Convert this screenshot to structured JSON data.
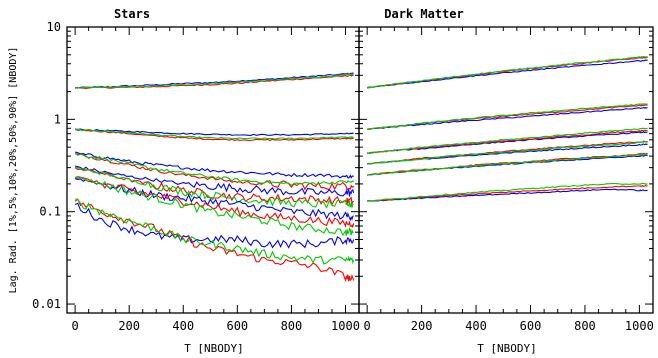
{
  "figure": {
    "y_axis_label": "Lag. Rad. [1%,5%,10%,20%,50%,90%] [NBODY]"
  },
  "series_colors": {
    "blue": "#0000ff",
    "red": "#ff0000",
    "green": "#00cc00"
  },
  "chart_data": [
    {
      "type": "line",
      "title": "Stars",
      "xlabel": "T [NBODY]",
      "ylabel": "Lag. Rad. [1%,5%,10%,20%,50%,90%] [NBODY]",
      "xlim": [
        -30,
        1050
      ],
      "ylim": [
        0.008,
        10
      ],
      "yscale": "log",
      "xticks": [
        0,
        200,
        400,
        600,
        800,
        1000
      ],
      "yticks": [
        0.01,
        0.1,
        1,
        10
      ],
      "ytick_labels": [
        "0.01",
        "0.1",
        "1",
        "10"
      ],
      "grid": false,
      "x": [
        0,
        100,
        200,
        300,
        400,
        500,
        600,
        700,
        800,
        900,
        1000,
        1030
      ],
      "series": [
        {
          "color": "blue",
          "values": [
            2.2,
            2.24,
            2.3,
            2.36,
            2.44,
            2.5,
            2.6,
            2.7,
            2.82,
            2.95,
            3.1,
            3.15
          ]
        },
        {
          "color": "red",
          "values": [
            2.18,
            2.2,
            2.22,
            2.26,
            2.32,
            2.38,
            2.46,
            2.58,
            2.7,
            2.82,
            2.95,
            3.0
          ]
        },
        {
          "color": "green",
          "values": [
            2.19,
            2.22,
            2.25,
            2.3,
            2.37,
            2.44,
            2.53,
            2.63,
            2.75,
            2.88,
            3.02,
            3.07
          ]
        },
        {
          "color": "blue",
          "values": [
            0.78,
            0.76,
            0.74,
            0.72,
            0.7,
            0.69,
            0.68,
            0.68,
            0.68,
            0.69,
            0.7,
            0.7
          ]
        },
        {
          "color": "red",
          "values": [
            0.77,
            0.74,
            0.7,
            0.66,
            0.63,
            0.61,
            0.6,
            0.6,
            0.6,
            0.61,
            0.62,
            0.62
          ]
        },
        {
          "color": "green",
          "values": [
            0.77,
            0.75,
            0.72,
            0.68,
            0.65,
            0.63,
            0.62,
            0.62,
            0.62,
            0.63,
            0.64,
            0.64
          ]
        },
        {
          "color": "blue",
          "values": [
            0.43,
            0.39,
            0.35,
            0.32,
            0.3,
            0.28,
            0.27,
            0.26,
            0.25,
            0.25,
            0.24,
            0.24
          ]
        },
        {
          "color": "red",
          "values": [
            0.42,
            0.37,
            0.32,
            0.28,
            0.25,
            0.23,
            0.21,
            0.2,
            0.195,
            0.19,
            0.19,
            0.19
          ]
        },
        {
          "color": "green",
          "values": [
            0.42,
            0.38,
            0.33,
            0.29,
            0.26,
            0.24,
            0.22,
            0.21,
            0.2,
            0.205,
            0.21,
            0.21
          ]
        },
        {
          "color": "blue",
          "values": [
            0.31,
            0.27,
            0.24,
            0.22,
            0.2,
            0.19,
            0.18,
            0.17,
            0.165,
            0.16,
            0.16,
            0.16
          ]
        },
        {
          "color": "red",
          "values": [
            0.3,
            0.26,
            0.22,
            0.19,
            0.17,
            0.155,
            0.145,
            0.14,
            0.14,
            0.135,
            0.13,
            0.13
          ]
        },
        {
          "color": "green",
          "values": [
            0.3,
            0.26,
            0.22,
            0.19,
            0.165,
            0.15,
            0.14,
            0.13,
            0.125,
            0.12,
            0.12,
            0.12
          ]
        },
        {
          "color": "blue",
          "values": [
            0.23,
            0.2,
            0.17,
            0.15,
            0.14,
            0.13,
            0.12,
            0.11,
            0.1,
            0.095,
            0.09,
            0.09
          ]
        },
        {
          "color": "red",
          "values": [
            0.24,
            0.2,
            0.17,
            0.15,
            0.13,
            0.115,
            0.1,
            0.09,
            0.085,
            0.08,
            0.075,
            0.075
          ]
        },
        {
          "color": "green",
          "values": [
            0.24,
            0.2,
            0.165,
            0.14,
            0.12,
            0.1,
            0.09,
            0.08,
            0.07,
            0.065,
            0.06,
            0.06
          ]
        },
        {
          "color": "blue",
          "values": [
            0.12,
            0.08,
            0.065,
            0.055,
            0.05,
            0.05,
            0.05,
            0.045,
            0.045,
            0.045,
            0.05,
            0.05
          ]
        },
        {
          "color": "red",
          "values": [
            0.13,
            0.1,
            0.08,
            0.065,
            0.05,
            0.04,
            0.035,
            0.03,
            0.028,
            0.025,
            0.02,
            0.018
          ]
        },
        {
          "color": "green",
          "values": [
            0.13,
            0.1,
            0.08,
            0.065,
            0.05,
            0.045,
            0.04,
            0.035,
            0.032,
            0.03,
            0.03,
            0.03
          ]
        }
      ]
    },
    {
      "type": "line",
      "title": "Dark Matter",
      "xlabel": "T [NBODY]",
      "xlim": [
        -30,
        1050
      ],
      "ylim": [
        0.008,
        10
      ],
      "yscale": "log",
      "xticks": [
        0,
        200,
        400,
        600,
        800,
        1000
      ],
      "grid": false,
      "x": [
        0,
        100,
        200,
        300,
        400,
        500,
        600,
        700,
        800,
        900,
        1000,
        1030
      ],
      "series": [
        {
          "color": "blue",
          "values": [
            2.2,
            2.38,
            2.56,
            2.76,
            2.97,
            3.18,
            3.4,
            3.62,
            3.84,
            4.07,
            4.3,
            4.37
          ]
        },
        {
          "color": "red",
          "values": [
            2.2,
            2.4,
            2.6,
            2.82,
            3.05,
            3.3,
            3.55,
            3.8,
            4.06,
            4.33,
            4.6,
            4.68
          ]
        },
        {
          "color": "green",
          "values": [
            2.2,
            2.41,
            2.62,
            2.85,
            3.09,
            3.34,
            3.6,
            3.86,
            4.13,
            4.41,
            4.7,
            4.79
          ]
        },
        {
          "color": "blue",
          "values": [
            0.78,
            0.83,
            0.88,
            0.93,
            0.98,
            1.03,
            1.08,
            1.14,
            1.2,
            1.26,
            1.32,
            1.34
          ]
        },
        {
          "color": "red",
          "values": [
            0.78,
            0.84,
            0.9,
            0.96,
            1.02,
            1.08,
            1.14,
            1.2,
            1.27,
            1.34,
            1.41,
            1.43
          ]
        },
        {
          "color": "green",
          "values": [
            0.78,
            0.84,
            0.91,
            0.97,
            1.04,
            1.1,
            1.17,
            1.24,
            1.31,
            1.38,
            1.45,
            1.47
          ]
        },
        {
          "color": "blue",
          "values": [
            0.43,
            0.46,
            0.48,
            0.51,
            0.54,
            0.57,
            0.6,
            0.63,
            0.66,
            0.69,
            0.72,
            0.73
          ]
        },
        {
          "color": "red",
          "values": [
            0.43,
            0.46,
            0.49,
            0.52,
            0.55,
            0.58,
            0.61,
            0.65,
            0.68,
            0.72,
            0.75,
            0.76
          ]
        },
        {
          "color": "green",
          "values": [
            0.43,
            0.46,
            0.5,
            0.53,
            0.56,
            0.6,
            0.63,
            0.67,
            0.71,
            0.75,
            0.79,
            0.8
          ]
        },
        {
          "color": "blue",
          "values": [
            0.33,
            0.35,
            0.37,
            0.39,
            0.41,
            0.43,
            0.45,
            0.47,
            0.49,
            0.51,
            0.53,
            0.54
          ]
        },
        {
          "color": "red",
          "values": [
            0.33,
            0.35,
            0.38,
            0.4,
            0.42,
            0.45,
            0.47,
            0.5,
            0.52,
            0.55,
            0.57,
            0.58
          ]
        },
        {
          "color": "green",
          "values": [
            0.33,
            0.35,
            0.37,
            0.4,
            0.42,
            0.44,
            0.46,
            0.49,
            0.51,
            0.53,
            0.56,
            0.57
          ]
        },
        {
          "color": "blue",
          "values": [
            0.25,
            0.265,
            0.28,
            0.295,
            0.31,
            0.325,
            0.34,
            0.355,
            0.37,
            0.385,
            0.4,
            0.405
          ]
        },
        {
          "color": "red",
          "values": [
            0.25,
            0.27,
            0.285,
            0.3,
            0.32,
            0.335,
            0.35,
            0.37,
            0.385,
            0.4,
            0.42,
            0.425
          ]
        },
        {
          "color": "green",
          "values": [
            0.25,
            0.265,
            0.28,
            0.3,
            0.315,
            0.33,
            0.345,
            0.36,
            0.38,
            0.395,
            0.41,
            0.415
          ]
        },
        {
          "color": "blue",
          "values": [
            0.13,
            0.135,
            0.14,
            0.145,
            0.15,
            0.155,
            0.16,
            0.165,
            0.17,
            0.175,
            0.17,
            0.17
          ]
        },
        {
          "color": "red",
          "values": [
            0.13,
            0.137,
            0.143,
            0.15,
            0.156,
            0.162,
            0.168,
            0.174,
            0.18,
            0.186,
            0.19,
            0.19
          ]
        },
        {
          "color": "green",
          "values": [
            0.13,
            0.138,
            0.146,
            0.154,
            0.162,
            0.17,
            0.178,
            0.186,
            0.194,
            0.2,
            0.2,
            0.2
          ]
        }
      ]
    }
  ]
}
